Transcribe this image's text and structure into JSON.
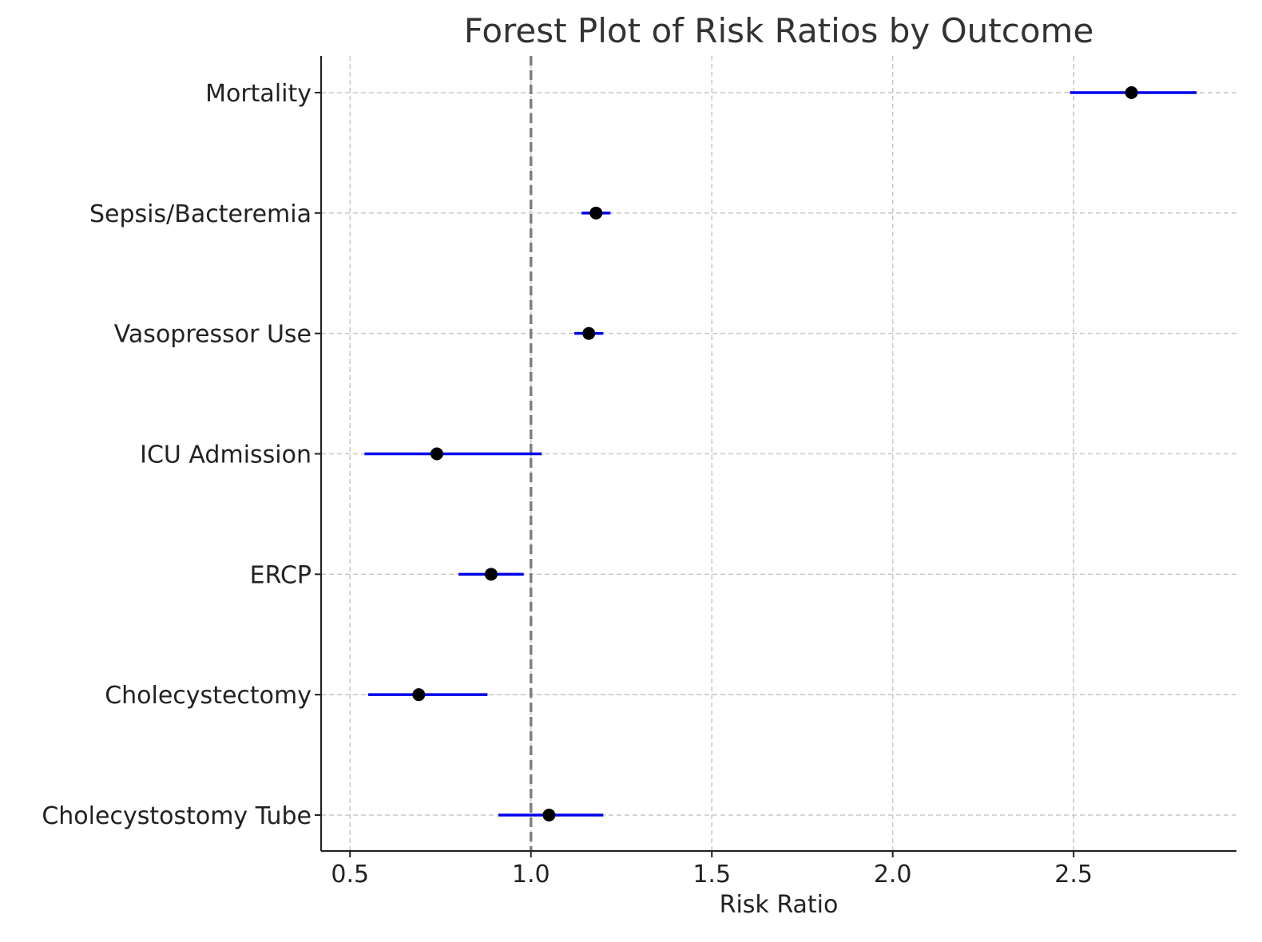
{
  "chart_data": {
    "type": "forest",
    "title": "Forest Plot of Risk Ratios by Outcome",
    "xlabel": "Risk Ratio",
    "ylabel": "",
    "xlim": [
      0.42,
      2.95
    ],
    "xticks": [
      0.5,
      1.0,
      1.5,
      2.0,
      2.5
    ],
    "xtick_labels": [
      "0.5",
      "1.0",
      "1.5",
      "2.0",
      "2.5"
    ],
    "reference_line": 1.0,
    "grid": true,
    "categories": [
      "Mortality",
      "Sepsis/Bacteremia",
      "Vasopressor Use",
      "ICU Admission",
      "ERCP",
      "Cholecystectomy",
      "Cholecystostomy Tube"
    ],
    "estimates": [
      2.66,
      1.18,
      1.16,
      0.74,
      0.89,
      0.69,
      1.05
    ],
    "ci_lower": [
      2.49,
      1.14,
      1.12,
      0.54,
      0.8,
      0.55,
      0.91
    ],
    "ci_upper": [
      2.84,
      1.22,
      1.2,
      1.03,
      0.98,
      0.88,
      1.2
    ],
    "colors": {
      "ci": "#0000ee",
      "point": "#000000",
      "reference": "#808080",
      "grid": "#c8c8c8"
    }
  }
}
